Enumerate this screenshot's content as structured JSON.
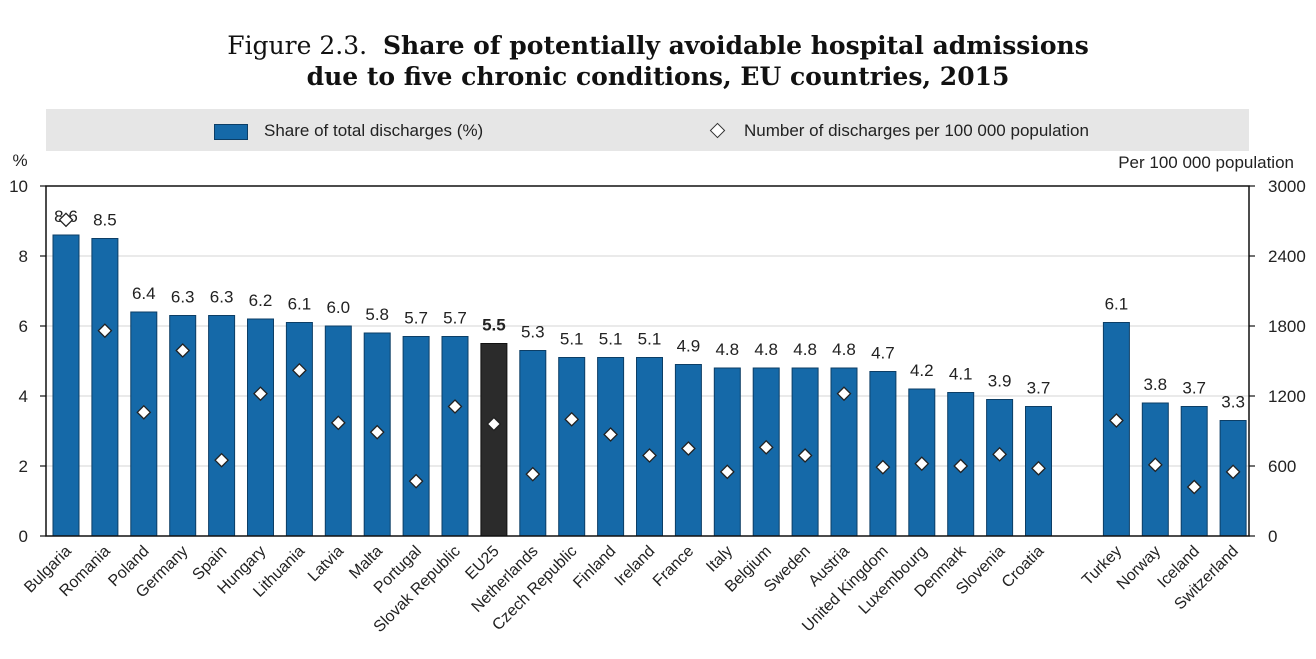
{
  "figure": {
    "prefix": "Figure 2.3.",
    "title_line1": "Share of potentially avoidable hospital admissions",
    "title_line2": "due to five chronic conditions, EU countries, 2015"
  },
  "legend": {
    "bar_label": "Share of total discharges (%)",
    "marker_label": "Number of discharges per 100 000 population"
  },
  "colors": {
    "bar": "#1569a8",
    "bar_highlight": "#2b2b2b",
    "legend_bg": "#e6e6e6"
  },
  "chart_data": {
    "type": "bar",
    "left_unit": "%",
    "right_unit": "Per 100 000 population",
    "ylim_left": [
      0,
      10
    ],
    "ylim_right": [
      0,
      3000
    ],
    "left_ticks": [
      "0",
      "2",
      "4",
      "6",
      "8",
      "10"
    ],
    "right_ticks": [
      "0",
      "600",
      "1200",
      "1800",
      "2400",
      "3000"
    ],
    "categories": [
      "Bulgaria",
      "Romania",
      "Poland",
      "Germany",
      "Spain",
      "Hungary",
      "Lithuania",
      "Latvia",
      "Malta",
      "Portugal",
      "Slovak Republic",
      "EU25",
      "Netherlands",
      "Czech Republic",
      "Finland",
      "Ireland",
      "France",
      "Italy",
      "Belgium",
      "Sweden",
      "Austria",
      "United Kingdom",
      "Luxembourg",
      "Denmark",
      "Slovenia",
      "Croatia",
      "Turkey",
      "Norway",
      "Iceland",
      "Switzerland"
    ],
    "series": [
      {
        "name": "Share of total discharges (%)",
        "values": [
          8.6,
          8.5,
          6.4,
          6.3,
          6.3,
          6.2,
          6.1,
          6.0,
          5.8,
          5.7,
          5.7,
          5.5,
          5.3,
          5.1,
          5.1,
          5.1,
          4.9,
          4.8,
          4.8,
          4.8,
          4.8,
          4.7,
          4.2,
          4.1,
          3.9,
          3.7,
          6.1,
          3.8,
          3.7,
          3.3
        ],
        "labels": [
          "8.6",
          "8.5",
          "6.4",
          "6.3",
          "6.3",
          "6.2",
          "6.1",
          "6.0",
          "5.8",
          "5.7",
          "5.7",
          "5.5",
          "5.3",
          "5.1",
          "5.1",
          "5.1",
          "4.9",
          "4.8",
          "4.8",
          "4.8",
          "4.8",
          "4.7",
          "4.2",
          "4.1",
          "3.9",
          "3.7",
          "6.1",
          "3.8",
          "3.7",
          "3.3"
        ]
      },
      {
        "name": "Number of discharges per 100 000 population",
        "axis": "right",
        "values": [
          2710,
          1760,
          1060,
          1590,
          650,
          1220,
          1420,
          970,
          890,
          470,
          1110,
          960,
          530,
          1000,
          870,
          690,
          750,
          550,
          760,
          690,
          1220,
          590,
          620,
          600,
          700,
          580,
          990,
          610,
          420,
          550
        ]
      }
    ],
    "highlight": "EU25",
    "gap_before": "Turkey"
  }
}
